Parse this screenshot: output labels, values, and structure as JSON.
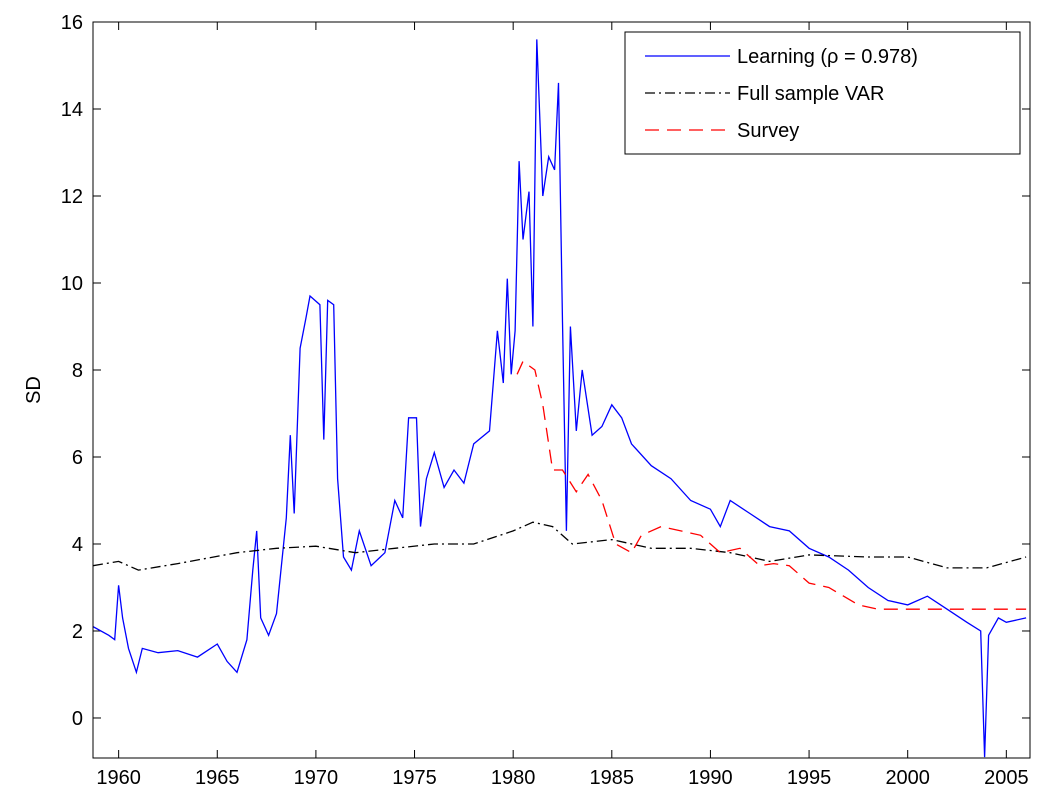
{
  "chart_data": {
    "type": "line",
    "y_label": "SD",
    "xlim": [
      1958.7,
      2006.2
    ],
    "ylim": [
      -0.92,
      16
    ],
    "xticks": [
      1960,
      1965,
      1970,
      1975,
      1980,
      1985,
      1990,
      1995,
      2000,
      2005
    ],
    "yticks": [
      0,
      2,
      4,
      6,
      8,
      10,
      12,
      14,
      16
    ],
    "legend": "upper right",
    "series": [
      {
        "name": "Learning (ρ = 0.978)",
        "color": "#0000ff",
        "style": "solid",
        "x": [
          1958.7,
          1959.5,
          1959.8,
          1960.0,
          1960.2,
          1960.5,
          1960.9,
          1961.2,
          1962,
          1963,
          1964,
          1965,
          1965.5,
          1966,
          1966.5,
          1966.8,
          1967,
          1967.2,
          1967.6,
          1968,
          1968.5,
          1968.7,
          1968.9,
          1969.2,
          1969.5,
          1969.7,
          1970.2,
          1970.4,
          1970.6,
          1970.9,
          1971.1,
          1971.4,
          1971.8,
          1972.2,
          1972.8,
          1973.5,
          1974,
          1974.4,
          1974.7,
          1975.1,
          1975.3,
          1975.6,
          1976,
          1976.5,
          1977,
          1977.5,
          1978,
          1978.8,
          1979.2,
          1979.5,
          1979.7,
          1979.9,
          1980.1,
          1980.3,
          1980.5,
          1980.8,
          1981.0,
          1981.2,
          1981.5,
          1981.8,
          1982.1,
          1982.3,
          1982.5,
          1982.7,
          1982.9,
          1983.2,
          1983.5,
          1984,
          1984.5,
          1985,
          1985.5,
          1986,
          1987,
          1988,
          1989,
          1990,
          1990.5,
          1991,
          1992,
          1993,
          1994,
          1995,
          1996,
          1997,
          1998,
          1999,
          2000,
          2001,
          2002,
          2003,
          2003.7,
          2003.9,
          2004.1,
          2004.6,
          2005,
          2006
        ],
        "values": [
          2.1,
          1.9,
          1.8,
          3.05,
          2.3,
          1.6,
          1.05,
          1.6,
          1.5,
          1.55,
          1.4,
          1.7,
          1.3,
          1.05,
          1.8,
          3.4,
          4.3,
          2.3,
          1.9,
          2.4,
          4.6,
          6.5,
          4.7,
          8.5,
          9.2,
          9.7,
          9.5,
          6.4,
          9.6,
          9.5,
          5.5,
          3.7,
          3.4,
          4.3,
          3.5,
          3.8,
          5.0,
          4.6,
          6.9,
          6.9,
          4.4,
          5.5,
          6.1,
          5.3,
          5.7,
          5.4,
          6.3,
          6.6,
          8.9,
          7.7,
          10.1,
          7.9,
          8.9,
          12.8,
          11.0,
          12.1,
          9.0,
          15.6,
          12.0,
          12.9,
          12.6,
          14.6,
          9.1,
          4.3,
          9.0,
          6.6,
          8.0,
          6.5,
          6.7,
          7.2,
          6.9,
          6.3,
          5.8,
          5.5,
          5.0,
          4.8,
          4.4,
          5.0,
          4.7,
          4.4,
          4.3,
          3.9,
          3.7,
          3.4,
          3.0,
          2.7,
          2.6,
          2.8,
          2.5,
          2.2,
          2.0,
          -0.9,
          1.9,
          2.3,
          2.2,
          2.3
        ]
      },
      {
        "name": "Full sample VAR",
        "color": "#000000",
        "style": "dashdot",
        "x": [
          1958.7,
          1960,
          1961,
          1963,
          1966,
          1968,
          1970,
          1972,
          1974,
          1976,
          1978,
          1980,
          1981,
          1982,
          1983,
          1985,
          1987,
          1989,
          1991,
          1993,
          1995,
          1998,
          2000,
          2002,
          2004,
          2006
        ],
        "values": [
          3.5,
          3.6,
          3.4,
          3.55,
          3.8,
          3.9,
          3.95,
          3.8,
          3.9,
          4.0,
          4.0,
          4.3,
          4.5,
          4.4,
          4.0,
          4.1,
          3.9,
          3.9,
          3.8,
          3.6,
          3.75,
          3.7,
          3.7,
          3.45,
          3.45,
          3.7
        ]
      },
      {
        "name": "Survey",
        "color": "#ff0000",
        "style": "dashed",
        "x": [
          1980.2,
          1980.5,
          1981.1,
          1981.5,
          1982,
          1982.5,
          1983.2,
          1983.8,
          1984.5,
          1985.2,
          1986,
          1986.5,
          1987.5,
          1988.5,
          1989.5,
          1990.5,
          1991.5,
          1992.5,
          1993.2,
          1994,
          1995,
          1996,
          1997.5,
          1998.5,
          2000,
          2006
        ],
        "values": [
          7.9,
          8.2,
          8.0,
          7.2,
          5.7,
          5.7,
          5.2,
          5.6,
          5.0,
          4.0,
          3.8,
          4.2,
          4.4,
          4.3,
          4.2,
          3.8,
          3.9,
          3.5,
          3.55,
          3.5,
          3.1,
          3.0,
          2.6,
          2.5,
          2.5,
          2.5
        ]
      }
    ]
  }
}
